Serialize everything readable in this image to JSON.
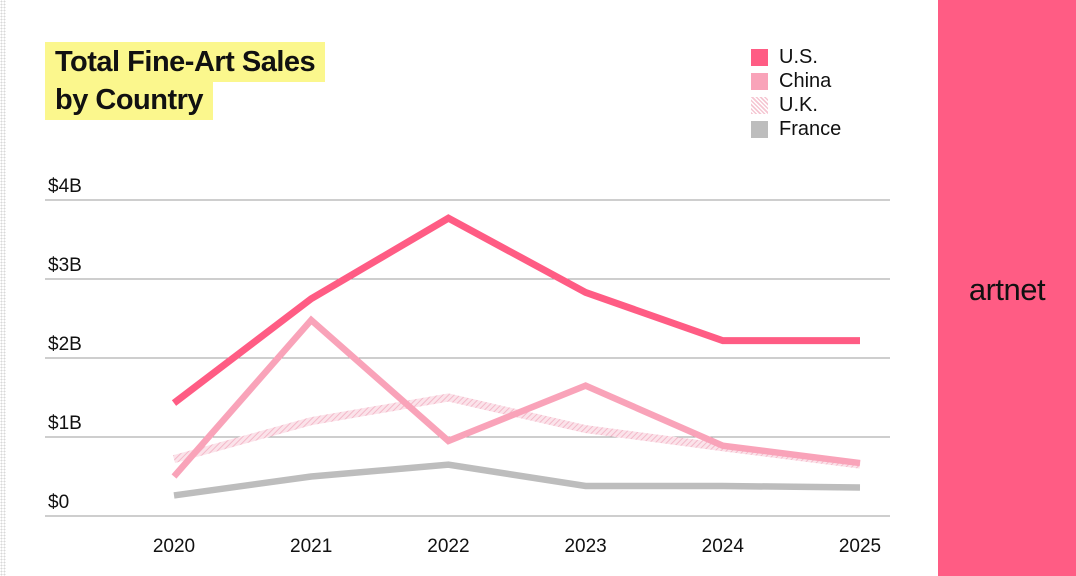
{
  "header": {
    "title_line1": "Total Fine-Art Sales",
    "title_line2": "by Country"
  },
  "brand": {
    "logo_text": "artnet"
  },
  "colors": {
    "us": "#ff5c84",
    "china": "#f9a3b9",
    "uk": "#f5c6d2",
    "france": "#bdbdbd",
    "highlight": "#fbf78d",
    "gridline": "#9e9e9e"
  },
  "chart_data": {
    "type": "line",
    "title": "Total Fine-Art Sales by Country",
    "xlabel": "",
    "ylabel": "",
    "x": [
      "2020",
      "2021",
      "2022",
      "2023",
      "2024",
      "2025"
    ],
    "ylim": [
      0,
      4
    ],
    "yticks": [
      {
        "value": 0,
        "label": "$0"
      },
      {
        "value": 1,
        "label": "$1B"
      },
      {
        "value": 2,
        "label": "$2B"
      },
      {
        "value": 3,
        "label": "$3B"
      },
      {
        "value": 4,
        "label": "$4B"
      }
    ],
    "grid": true,
    "legend_position": "top-right",
    "series": [
      {
        "key": "us",
        "name": "U.S.",
        "values": [
          1.43,
          2.75,
          3.77,
          2.83,
          2.22,
          2.22
        ]
      },
      {
        "key": "china",
        "name": "China",
        "values": [
          0.5,
          2.48,
          0.95,
          1.65,
          0.89,
          0.67
        ]
      },
      {
        "key": "uk",
        "name": "U.K.",
        "values": [
          0.72,
          1.2,
          1.5,
          1.1,
          0.87,
          0.65
        ]
      },
      {
        "key": "france",
        "name": "France",
        "values": [
          0.26,
          0.5,
          0.65,
          0.38,
          0.38,
          0.36
        ]
      }
    ]
  }
}
